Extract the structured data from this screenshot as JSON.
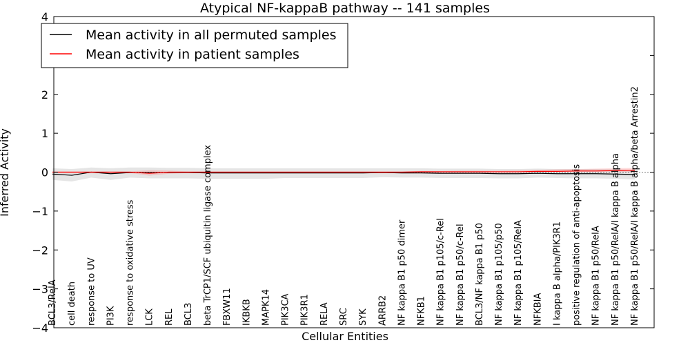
{
  "chart_data": {
    "type": "line",
    "title": "Atypical NF-kappaB pathway -- 141 samples",
    "xlabel": "Cellular Entities",
    "ylabel": "Inferred Activity",
    "ylim": [
      -4,
      4
    ],
    "yticks": [
      -4,
      -3,
      -2,
      -1,
      0,
      1,
      2,
      3,
      4
    ],
    "grid": false,
    "legend_position": "top-left",
    "categories": [
      "BCL3/RelA",
      "cell death",
      "response to UV",
      "PI3K",
      "response to oxidative stress",
      "LCK",
      "REL",
      "BCL3",
      "beta TrCP1/SCF ubiquitin ligase complex",
      "FBXW11",
      "IKBKB",
      "MAPK14",
      "PIK3CA",
      "PIK3R1",
      "RELA",
      "SRC",
      "SYK",
      "ARRB2",
      "NF kappa B1 p50 dimer",
      "NFKB1",
      "NF kappa B1 p105/c-Rel",
      "NF kappa B1 p50/c-Rel",
      "BCL3/NF kappa B1 p50",
      "NF kappa B1 p105/p50",
      "NF kappa B1 p105/RelA",
      "NFKBIA",
      "I kappa B alpha/PIK3R1",
      "positive regulation of anti-apoptosis",
      "NF kappa B1 p50/RelA",
      "NF kappa B1 p50/RelA/I kappa B alpha",
      "NF kappa B1 p50/RelA/I kappa B alpha/beta Arrestin2"
    ],
    "series": [
      {
        "name": "Mean activity in all permuted samples",
        "color": "#000000",
        "values": [
          -0.05,
          -0.08,
          0.0,
          -0.04,
          -0.01,
          -0.01,
          -0.01,
          -0.01,
          -0.02,
          -0.02,
          -0.02,
          -0.02,
          -0.02,
          -0.02,
          -0.02,
          -0.02,
          -0.02,
          -0.01,
          -0.02,
          -0.02,
          -0.03,
          -0.03,
          -0.03,
          -0.04,
          -0.04,
          -0.03,
          -0.04,
          -0.04,
          -0.04,
          -0.05,
          -0.06
        ],
        "band_low": [
          -0.2,
          -0.24,
          -0.14,
          -0.2,
          -0.14,
          -0.16,
          -0.16,
          -0.16,
          -0.17,
          -0.17,
          -0.17,
          -0.17,
          -0.15,
          -0.15,
          -0.15,
          -0.15,
          -0.15,
          -0.13,
          -0.14,
          -0.14,
          -0.15,
          -0.15,
          -0.15,
          -0.16,
          -0.16,
          -0.14,
          -0.15,
          -0.16,
          -0.16,
          -0.17,
          -0.19
        ],
        "band_high": [
          0.1,
          0.08,
          0.12,
          0.1,
          0.12,
          0.12,
          0.11,
          0.11,
          0.1,
          0.1,
          0.1,
          0.1,
          0.1,
          0.1,
          0.1,
          0.1,
          0.1,
          0.1,
          0.1,
          0.1,
          0.09,
          0.09,
          0.09,
          0.08,
          0.08,
          0.09,
          0.08,
          0.08,
          0.08,
          0.07,
          0.06
        ]
      },
      {
        "name": "Mean activity in patient samples",
        "color": "#ff0000",
        "values": [
          0.0,
          0.0,
          0.0,
          0.0,
          0.0,
          -0.03,
          0.0,
          0.0,
          0.0,
          0.0,
          0.0,
          0.0,
          0.0,
          0.0,
          0.0,
          0.0,
          0.0,
          0.0,
          0.0,
          0.01,
          0.01,
          0.01,
          0.01,
          0.01,
          0.01,
          0.02,
          0.02,
          0.03,
          0.03,
          0.04,
          0.05
        ],
        "band_low": [
          -0.02,
          -0.02,
          -0.02,
          -0.02,
          -0.02,
          -0.09,
          -0.04,
          -0.02,
          -0.02,
          -0.02,
          -0.02,
          -0.02,
          -0.02,
          -0.02,
          -0.02,
          -0.02,
          -0.02,
          -0.02,
          -0.02,
          -0.01,
          -0.01,
          -0.01,
          -0.01,
          -0.01,
          -0.01,
          0.0,
          0.0,
          0.0,
          0.0,
          0.0,
          0.0
        ],
        "band_high": [
          0.02,
          0.02,
          0.02,
          0.02,
          0.02,
          0.05,
          0.04,
          0.02,
          0.02,
          0.02,
          0.02,
          0.02,
          0.02,
          0.02,
          0.02,
          0.02,
          0.02,
          0.02,
          0.02,
          0.03,
          0.03,
          0.04,
          0.04,
          0.04,
          0.05,
          0.06,
          0.07,
          0.08,
          0.09,
          0.1,
          0.11
        ]
      }
    ]
  }
}
